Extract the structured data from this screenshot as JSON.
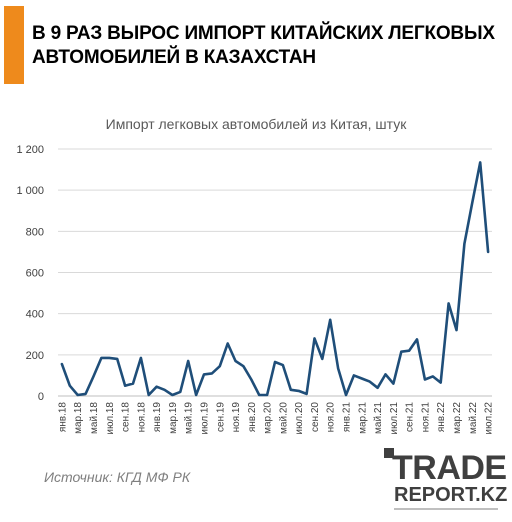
{
  "headline": "В 9 РАЗ ВЫРОС ИМПОРТ КИТАЙСКИХ ЛЕГКОВЫХ АВТОМОБИЛЕЙ В КАЗАХСТАН",
  "source": "Источник: КГД МФ РК",
  "logo": {
    "top": "TRADE",
    "bottom": "REPORT.KZ"
  },
  "colors": {
    "accent": "#ee8a1c",
    "line": "#1f4e79",
    "grid": "#d9d9d9"
  },
  "chart_data": {
    "type": "line",
    "title": "Импорт легковых автомобилей из Китая, штук",
    "xlabel": "",
    "ylabel": "",
    "ylim": [
      0,
      1200
    ],
    "y_ticks": [
      "0",
      "200",
      "400",
      "600",
      "800",
      "1 000",
      "1 200"
    ],
    "grid": true,
    "legend": "none",
    "x": [
      "янв.18",
      "фев.18",
      "мар.18",
      "апр.18",
      "май.18",
      "июн.18",
      "июл.18",
      "авг.18",
      "сен.18",
      "окт.18",
      "ноя.18",
      "дек.18",
      "янв.19",
      "фев.19",
      "мар.19",
      "апр.19",
      "май.19",
      "июн.19",
      "июл.19",
      "авг.19",
      "сен.19",
      "окт.19",
      "ноя.19",
      "дек.19",
      "янв.20",
      "фев.20",
      "мар.20",
      "апр.20",
      "май.20",
      "июн.20",
      "июл.20",
      "авг.20",
      "сен.20",
      "окт.20",
      "ноя.20",
      "дек.20",
      "янв.21",
      "фев.21",
      "мар.21",
      "апр.21",
      "май.21",
      "июн.21",
      "июл.21",
      "авг.21",
      "сен.21",
      "окт.21",
      "ноя.21",
      "дек.21",
      "янв.22",
      "фев.22",
      "мар.22",
      "апр.22",
      "май.22",
      "июн.22",
      "июл.22"
    ],
    "x_tick_labels": [
      "янв.18",
      "мар.18",
      "май.18",
      "июл.18",
      "сен.18",
      "ноя.18",
      "янв.19",
      "мар.19",
      "май.19",
      "июл.19",
      "сен.19",
      "ноя.19",
      "янв.20",
      "мар.20",
      "май.20",
      "июл.20",
      "сен.20",
      "ноя.20",
      "янв.21",
      "мар.21",
      "май.21",
      "июл.21",
      "сен.21",
      "ноя.21",
      "янв.22",
      "мар.22",
      "май.22",
      "июл.22"
    ],
    "series": [
      {
        "values": [
          155,
          50,
          5,
          10,
          95,
          185,
          185,
          180,
          50,
          60,
          185,
          5,
          45,
          30,
          5,
          20,
          170,
          5,
          105,
          110,
          145,
          255,
          170,
          145,
          80,
          5,
          5,
          165,
          150,
          30,
          25,
          10,
          280,
          180,
          370,
          135,
          5,
          100,
          85,
          70,
          40,
          105,
          60,
          215,
          220,
          275,
          80,
          95,
          65,
          450,
          320,
          740,
          940,
          1135,
          700
        ]
      }
    ]
  }
}
